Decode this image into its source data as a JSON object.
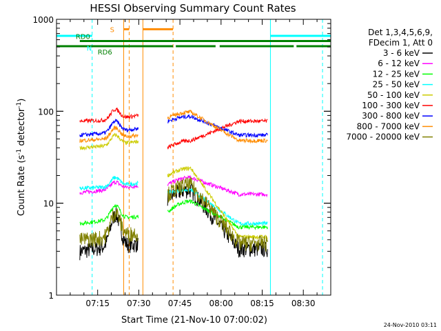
{
  "chart_data": {
    "type": "line",
    "title": "HESSI Observing Summary Count Rates",
    "xlabel": "Start Time (21-Nov-10 07:00:02)",
    "ylabel_main": "Count Rate (s",
    "ylabel_sup1": "-1",
    "ylabel_mid": " detector",
    "ylabel_sup2": "-1",
    "ylabel_end": ")",
    "yscale": "log",
    "ylim": [
      1,
      1000
    ],
    "xlim_minutes": [
      0,
      100
    ],
    "x_ticks": [
      {
        "label": "07:15",
        "min": 15
      },
      {
        "label": "07:30",
        "min": 30
      },
      {
        "label": "07:45",
        "min": 45
      },
      {
        "label": "08:00",
        "min": 60
      },
      {
        "label": "08:15",
        "min": 75
      },
      {
        "label": "08:30",
        "min": 90
      }
    ],
    "y_ticks": [
      {
        "label": "1",
        "val": 1
      },
      {
        "label": "10",
        "val": 10
      },
      {
        "label": "100",
        "val": 100
      },
      {
        "label": "1000",
        "val": 1000
      }
    ],
    "legend_header": [
      "Det 1,3,4,5,6,9,",
      "FDecim 1, Att 0"
    ],
    "series": [
      {
        "name": "3 - 6 keV",
        "color": "#000000",
        "s1": [
          3.0,
          3.4,
          3.6
        ],
        "peak1": 7.5,
        "s2": [
          11.5,
          14.0,
          3.2
        ]
      },
      {
        "name": "6 - 12 keV",
        "color": "#ff00ff",
        "s1": [
          13.0,
          14.0,
          15.5
        ],
        "peak1": 17.0,
        "s2": [
          16.0,
          19.0,
          12.5
        ]
      },
      {
        "name": "12 - 25 keV",
        "color": "#00ff00",
        "s1": [
          6.0,
          6.6,
          7.2
        ],
        "peak1": 9.5,
        "s2": [
          8.0,
          10.5,
          5.5
        ]
      },
      {
        "name": "25 - 50 keV",
        "color": "#00ffff",
        "s1": [
          14.5,
          15.0,
          16.5
        ],
        "peak1": 19.0,
        "s2": [
          13.0,
          14.0,
          6.0
        ]
      },
      {
        "name": "50 - 100 keV",
        "color": "#cccc00",
        "s1": [
          40.0,
          42.0,
          47.0
        ],
        "peak1": 55.0,
        "s2": [
          20.0,
          24.0,
          4.3
        ]
      },
      {
        "name": "100 - 300 keV",
        "color": "#ff0000",
        "s1": [
          78.0,
          80.0,
          90.0
        ],
        "peak1": 105.0,
        "s2": [
          40.0,
          48.0,
          78.0
        ]
      },
      {
        "name": "300 - 800 keV",
        "color": "#0000ff",
        "s1": [
          55.0,
          58.0,
          65.0
        ],
        "peak1": 78.0,
        "s2": [
          78.0,
          88.0,
          55.0
        ]
      },
      {
        "name": "800 - 7000 keV",
        "color": "#ff8c00",
        "s1": [
          48.0,
          50.0,
          55.0
        ],
        "peak1": 66.0,
        "s2": [
          85.0,
          98.0,
          48.0
        ]
      },
      {
        "name": "7000 - 20000 keV",
        "color": "#808000",
        "s1": [
          4.0,
          4.3,
          4.8
        ],
        "peak1": 8.0,
        "s2": [
          12.5,
          16.0,
          3.7
        ]
      }
    ],
    "segments": {
      "seg1_start_min": 8.5,
      "seg1_end_min": 29.8,
      "seg1_peak_min": 21.5,
      "seg2_start_min": 40.5,
      "seg2_end_min": 77.0,
      "seg2_peak_min": 49.0,
      "seg2_step_min": 60.0
    },
    "flag_bars": [
      {
        "label": "",
        "color": "#00ffff",
        "y": 660,
        "ranges": [
          [
            0,
            13
          ],
          [
            78,
            100
          ]
        ]
      },
      {
        "label": "RD0",
        "color": "#008000",
        "y": 580,
        "ranges": [
          [
            8.5,
            100
          ]
        ]
      },
      {
        "label": "RD6",
        "color": "#008000",
        "y": 510,
        "ranges": [
          [
            0,
            42.5
          ],
          [
            43.5,
            58
          ],
          [
            59.5,
            86.5
          ],
          [
            87.5,
            100
          ]
        ]
      },
      {
        "label": "S",
        "color": "#ff8c00",
        "y": 780,
        "ranges": [
          [
            24.5,
            26.5
          ],
          [
            31.5,
            42.5
          ]
        ]
      },
      {
        "label": "N",
        "color": "#00ffff",
        "y": 560,
        "ranges": []
      }
    ],
    "vlines": [
      {
        "min": 13,
        "color": "#00ffff",
        "dash": true
      },
      {
        "min": 24.5,
        "color": "#ff8c00",
        "dash": false
      },
      {
        "min": 26.5,
        "color": "#ff8c00",
        "dash": true
      },
      {
        "min": 31.5,
        "color": "#ff8c00",
        "dash": false
      },
      {
        "min": 42.5,
        "color": "#ff8c00",
        "dash": true
      },
      {
        "min": 78,
        "color": "#00ffff",
        "dash": false
      },
      {
        "min": 97,
        "color": "#00ffff",
        "dash": true
      }
    ],
    "timestamp": "24-Nov-2010 03:11"
  }
}
